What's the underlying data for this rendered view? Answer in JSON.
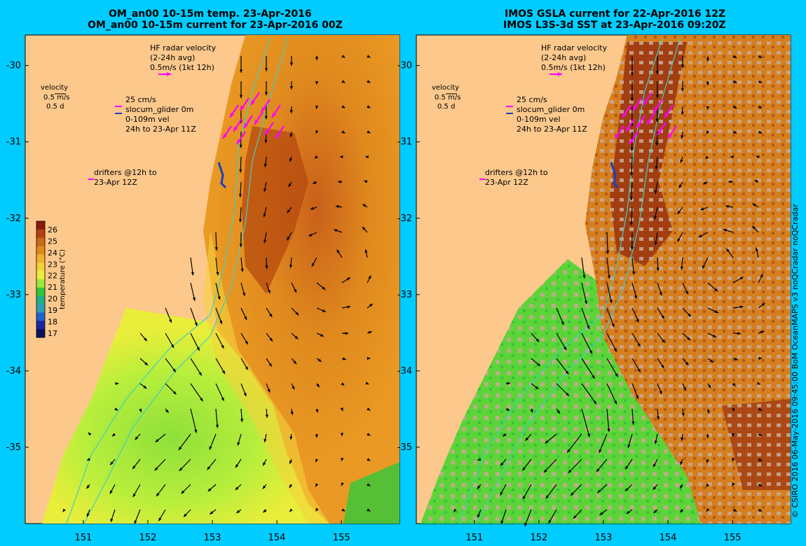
{
  "left_panel": {
    "title_line1": "OM_an00 10-15m temp. 23-Apr-2016",
    "title_line2": "OM_an00 10-15m current for 23-Apr-2016 00Z",
    "hf_radar": [
      "HF radar velocity",
      "(2-24h avg)",
      "0.5m/s (1kt 12h)"
    ],
    "velocity_key": [
      "velocity",
      "0.5 m/s",
      "0.5 d"
    ],
    "glider_key": [
      "25 cm/s",
      "slocum_glider 0m",
      "0-109m vel",
      "24h to 23-Apr 11Z"
    ],
    "drifters_key": [
      "drifters @12h to",
      "23-Apr 12Z"
    ]
  },
  "right_panel": {
    "title_line1": "IMOS GSLA current for 22-Apr-2016 12Z",
    "title_line2": "IMOS L3S-3d SST at 23-Apr-2016 09:20Z",
    "hf_radar": [
      "HF radar velocity",
      "(2-24h avg)",
      "0.5m/s (1kt 12h)"
    ],
    "velocity_key": [
      "velocity",
      "0.5 m/s",
      "0.5 d"
    ],
    "glider_key": [
      "25 cm/s",
      "slocum_glider 0m",
      "0-109m vel",
      "24h to 23-Apr 11Z"
    ],
    "drifters_key": [
      "drifters @12h to",
      "23-Apr 12Z"
    ]
  },
  "colorbar": {
    "label": "temperature (°C)",
    "ticks": [
      "26",
      "25",
      "24",
      "23",
      "22",
      "21",
      "20",
      "19",
      "18",
      "17"
    ],
    "colors": [
      "#8b1a0a",
      "#b5400f",
      "#c96a18",
      "#e08a1e",
      "#f0b030",
      "#f4d23a",
      "#e8ee3a",
      "#9be83a",
      "#2fc83a",
      "#20b088",
      "#2aa0b8",
      "#2060d0",
      "#1828a0",
      "#0a1060"
    ]
  },
  "axes": {
    "y_ticks": [
      "-30",
      "-31",
      "-32",
      "-33",
      "-34",
      "-35"
    ],
    "x_ticks": [
      "151",
      "152",
      "153",
      "154",
      "155"
    ],
    "lat_range": [
      -36.0,
      -29.6
    ],
    "lon_range": [
      150.1,
      155.9
    ]
  },
  "credit": "© CSIRO 2016   06-May-2016 09:45:00 BoM OceanMAPS v3 noQCradar noQCradar",
  "colors": {
    "background": "#00ccff",
    "land": "#fcc88c",
    "warm_core": "#b5490f",
    "warm": "#e08a1e",
    "cool": "#9be83a",
    "radar_arrow": "#ff00ff",
    "glider_arrow": "#1840c0",
    "isobath": "#40d0c0"
  }
}
